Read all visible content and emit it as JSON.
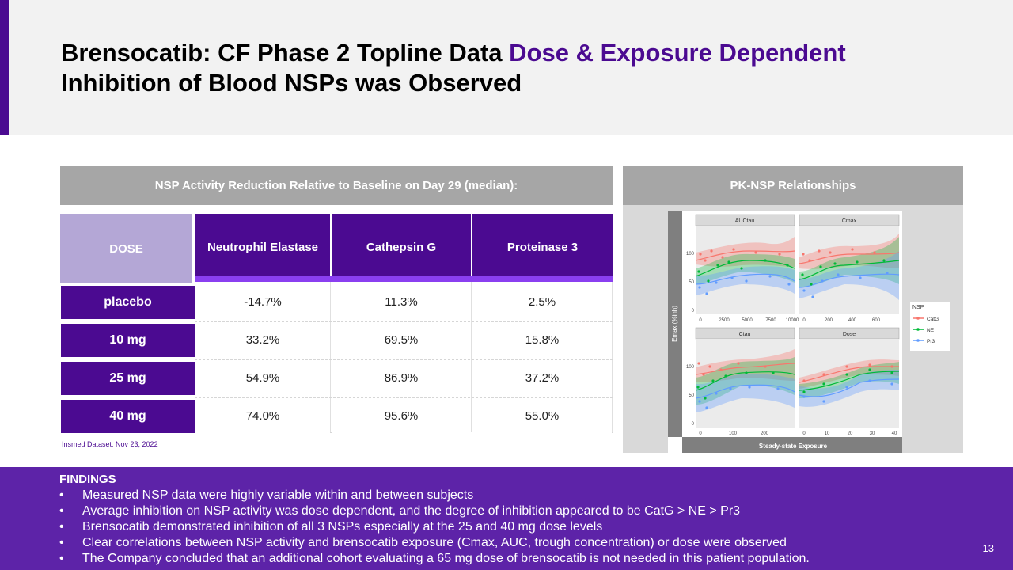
{
  "header": {
    "title_part1": "Brensocatib:  CF Phase 2 Topline Data ",
    "title_highlight": "Dose & Exposure Dependent",
    "title_part2": "Inhibition of Blood NSPs was Observed"
  },
  "table": {
    "caption": "NSP Activity Reduction Relative to Baseline on Day 29 (median):",
    "columns": [
      "DOSE",
      "Neutrophil Elastase",
      "Cathepsin G",
      "Proteinase 3"
    ],
    "rows": [
      {
        "dose": "placebo",
        "ne": "-14.7%",
        "catg": "11.3%",
        "pr3": "2.5%"
      },
      {
        "dose": "10 mg",
        "ne": "33.2%",
        "catg": "69.5%",
        "pr3": "15.8%"
      },
      {
        "dose": "25 mg",
        "ne": "54.9%",
        "catg": "86.9%",
        "pr3": "37.2%"
      },
      {
        "dose": "40 mg",
        "ne": "74.0%",
        "catg": "95.6%",
        "pr3": "55.0%"
      }
    ],
    "source": "Insmed Dataset: Nov 23, 2022"
  },
  "pk": {
    "caption": "PK-NSP Relationships",
    "facets": [
      "AUCtau",
      "Cmax",
      "Ctau",
      "Dose"
    ],
    "y_label": "Emax (%inh)",
    "x_label": "Steady-state Exposure",
    "legend_title": "NSP",
    "legend_items": [
      "CatG",
      "NE",
      "Pr3"
    ],
    "y_ticks": [
      "0",
      "50",
      "100"
    ],
    "x_ticks": {
      "AUCtau": [
        "0",
        "2500",
        "5000",
        "7500",
        "10000"
      ],
      "Cmax": [
        "0",
        "200",
        "400",
        "600"
      ],
      "Ctau": [
        "0",
        "100",
        "200"
      ],
      "Dose": [
        "0",
        "10",
        "20",
        "30",
        "40"
      ]
    },
    "colors": {
      "CatG": "#f8766d",
      "NE": "#00ba38",
      "Pr3": "#619cff"
    }
  },
  "findings": {
    "title": "FINDINGS",
    "bullet": "•",
    "items": [
      "Measured NSP data were highly variable within and between subjects",
      "Average inhibition on NSP activity was dose dependent, and the degree of inhibition appeared to be CatG > NE > Pr3",
      "Brensocatib demonstrated inhibition of all 3 NSPs especially at the 25 and 40 mg dose levels",
      "Clear correlations between NSP activity and brensocatib exposure (Cmax, AUC, trough concentration) or dose were observed",
      "The Company concluded that an additional cohort evaluating a 65 mg dose of brensocatib is not needed in this patient population."
    ],
    "page_number": "13"
  },
  "colors": {
    "brand_purple": "#4b0a91",
    "light_purple": "#b4a7d6",
    "accent_purple": "#8a3ff0",
    "findings_bg": "#5d23a8",
    "caption_gray": "#a6a6a6"
  }
}
